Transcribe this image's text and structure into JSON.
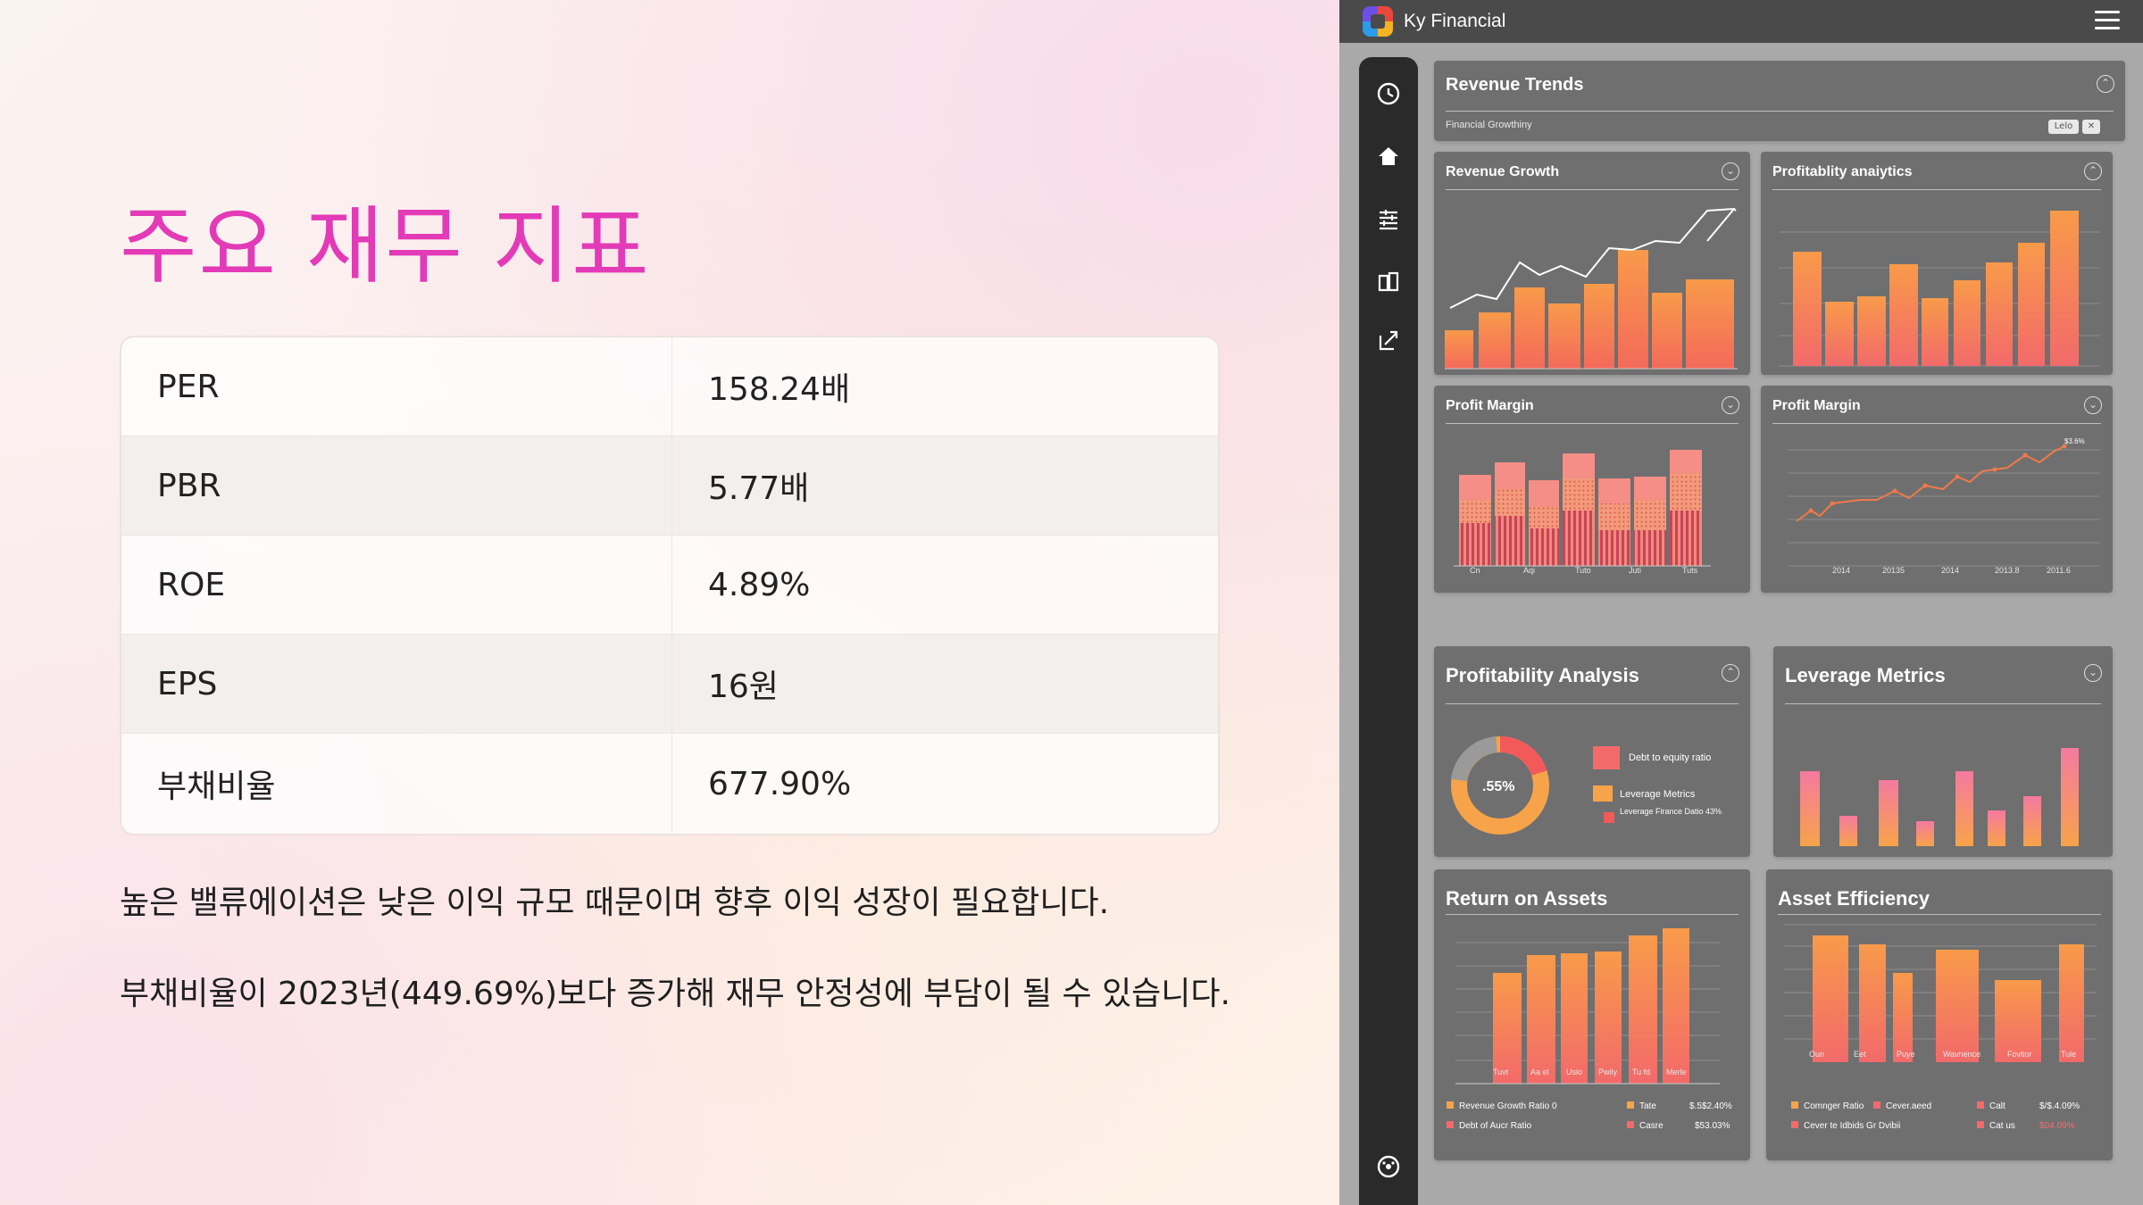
{
  "slide": {
    "title": "주요 재무 지표",
    "metrics": [
      {
        "label": "PER",
        "value": "158.24배"
      },
      {
        "label": "PBR",
        "value": "5.77배"
      },
      {
        "label": "ROE",
        "value": "4.89%"
      },
      {
        "label": "EPS",
        "value": "16원"
      },
      {
        "label": "부채비율",
        "value": "677.90%"
      }
    ],
    "notes": [
      "높은 밸류에이션은 낮은 이익 규모 때문이며 향후 이익 성장이 필요합니다.",
      "부채비율이 2023년(449.69%)보다 증가해 재무 안정성에 부담이 될 수 있습니다."
    ]
  },
  "app": {
    "title": "Ky Financial",
    "menu_icon": "hamburger-icon",
    "sidebar_icons": [
      "clock-icon",
      "home-icon",
      "filter-icon",
      "book-icon",
      "export-icon",
      "settings-icon"
    ],
    "revenue_trends": {
      "title": "Revenue Trends",
      "subtitle": "Financial Growthiny",
      "chip_label": "Lelo",
      "chip_close": "✕"
    },
    "panels": {
      "revenue_growth": "Revenue Growth",
      "profitability_small": "Profitablity anaiytics",
      "profit_margin_a": "Profit Margin",
      "profit_margin_b": "Profit Margin",
      "profitability_analysis": "Profitability Analysis",
      "leverage_metrics": "Leverage Metrics",
      "return_on_assets": "Return on Assets",
      "asset_efficiency": "Asset Efficiency"
    },
    "donut": {
      "center_label": ".55%",
      "legend": [
        "Debt to equity ratio",
        "Leverage Metrics",
        "Leverage Firance Datio 43%"
      ]
    },
    "roa_legend": [
      {
        "label": "Revenue Growth Ratio 0",
        "mid": "Tate",
        "value": "$.5$2.40%"
      },
      {
        "label": "Debt of Aucr Ratio",
        "mid": "Casre",
        "value": "$53.03%"
      }
    ],
    "asset_legend": [
      {
        "label": "Comnger Ratio",
        "mid": "Cever.aeed",
        "extra": "Calt",
        "value": "$/$.4.09%"
      },
      {
        "label": "Cever te Idbids Gr Dvibii",
        "extra": "Cat us",
        "value": "$04.09%"
      }
    ],
    "margin_xlabels": [
      "Cn",
      "Aqi",
      "Tuto",
      "Juti",
      "Tuts"
    ],
    "line_xlabels": [
      "2014",
      "20135",
      "2014",
      "2013.8",
      "2011.6"
    ],
    "line_peak_label": "$3.6%",
    "roa_xlabels": [
      "Tuvt",
      "Aa el",
      "Usio",
      "Pwily",
      "Tu fd",
      "Merle"
    ],
    "asset_xlabels": [
      "Oun",
      "Eet",
      "Puye",
      "Wavnence",
      "Fovtior",
      "Tule"
    ],
    "colors": {
      "accent": "#e33ab7",
      "bar_top": "#f89a4a",
      "bar_bottom": "#f26a6a",
      "panel": "#6f6f6f"
    }
  }
}
